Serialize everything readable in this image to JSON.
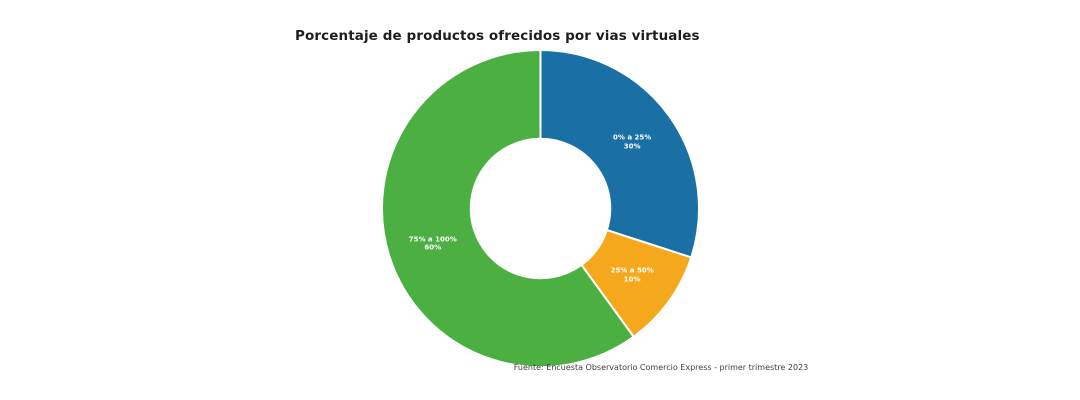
{
  "page": {
    "background_color": "#ffffff"
  },
  "chart_data": {
    "type": "pie",
    "subtype": "donut",
    "title": "Porcentaje de productos ofrecidos por vias virtuales",
    "source_note": "Fuente: Encuesta Observatorio Comercio Express - primer trimestre 2023",
    "start_angle_deg": 0,
    "direction": "clockwise",
    "inner_radius_ratio": 0.44,
    "label_text_color": "#ffffff",
    "slice_border_color": "#ffffff",
    "legend": "none",
    "slices": [
      {
        "label": "0% a 25%",
        "value": 30,
        "display_value": "30%",
        "color": "#1a6fa5"
      },
      {
        "label": "25% a 50%",
        "value": 10,
        "display_value": "10%",
        "color": "#f5a81c"
      },
      {
        "label": "75% a 100%",
        "value": 60,
        "display_value": "60%",
        "color": "#4caf41"
      }
    ]
  }
}
